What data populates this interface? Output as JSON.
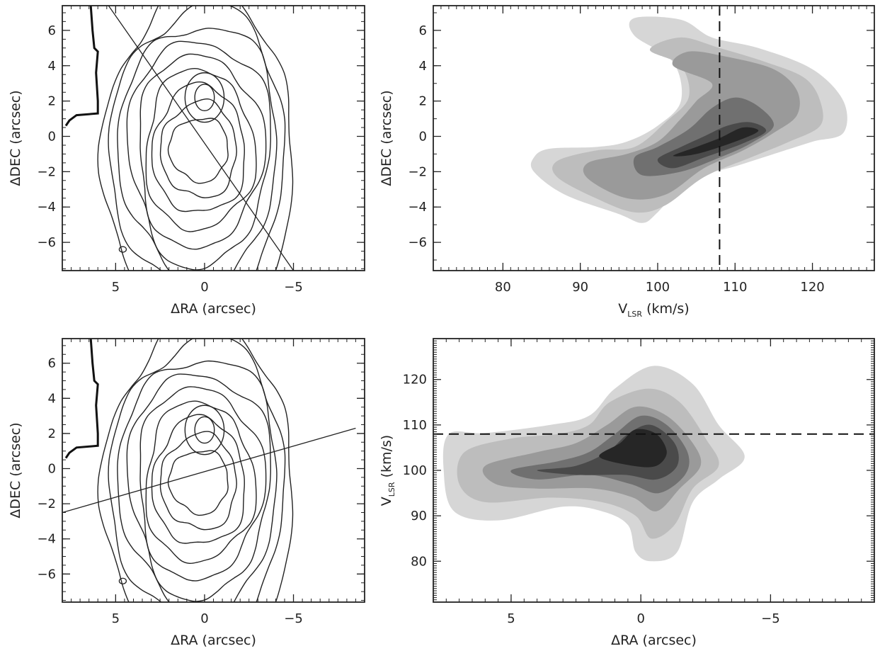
{
  "figure": {
    "panels": [
      "top-left",
      "top-right",
      "bottom-left",
      "bottom-right"
    ]
  },
  "chart_data": [
    {
      "id": "top-left",
      "type": "contour",
      "xlabel": "ΔRA (arcsec)",
      "ylabel": "ΔDEC (arcsec)",
      "xlim": [
        8,
        -9
      ],
      "ylim": [
        -7.6,
        7.4
      ],
      "xticks": [
        {
          "v": 5,
          "label": "5"
        },
        {
          "v": 0,
          "label": "0"
        },
        {
          "v": -5,
          "label": "−5"
        }
      ],
      "yticks": [
        {
          "v": 6,
          "label": "6"
        },
        {
          "v": 4,
          "label": "4"
        },
        {
          "v": 2,
          "label": "2"
        },
        {
          "v": 0,
          "label": "0"
        },
        {
          "v": -2,
          "label": "−2"
        },
        {
          "v": -4,
          "label": "−4"
        },
        {
          "v": -6,
          "label": "−6"
        }
      ],
      "contour_levels": 9,
      "center": [
        0.3,
        -0.7
      ],
      "peak": [
        0,
        2.2
      ],
      "cut_line": [
        [
          5.4,
          7.4
        ],
        [
          -5.0,
          -7.6
        ]
      ]
    },
    {
      "id": "top-right",
      "type": "heatmap",
      "xlabel": "V",
      "xlabel_sub": "LSR",
      "xlabel_unit": " (km/s)",
      "ylabel": "ΔDEC (arcsec)",
      "xlim": [
        71,
        128
      ],
      "ylim": [
        -7.6,
        7.4
      ],
      "xticks": [
        {
          "v": 80,
          "label": "80"
        },
        {
          "v": 90,
          "label": "90"
        },
        {
          "v": 100,
          "label": "100"
        },
        {
          "v": 110,
          "label": "110"
        },
        {
          "v": 120,
          "label": "120"
        }
      ],
      "yticks": [
        {
          "v": 6,
          "label": "6"
        },
        {
          "v": 4,
          "label": "4"
        },
        {
          "v": 2,
          "label": "2"
        },
        {
          "v": 0,
          "label": "0"
        },
        {
          "v": -2,
          "label": "−2"
        },
        {
          "v": -4,
          "label": "−4"
        },
        {
          "v": -6,
          "label": "−6"
        }
      ],
      "dashed_vline": 108,
      "shells": [
        {
          "gray": "#d6d6d6",
          "pts": [
            [
              84,
              -1.2
            ],
            [
              86,
              -0.7
            ],
            [
              92,
              -0.6
            ],
            [
              96,
              -0.3
            ],
            [
              100,
              0.6
            ],
            [
              103,
              2.0
            ],
            [
              102,
              4.2
            ],
            [
              97,
              5.7
            ],
            [
              97,
              6.7
            ],
            [
              103,
              6.6
            ],
            [
              107,
              5.6
            ],
            [
              113,
              5.0
            ],
            [
              120,
              3.8
            ],
            [
              124,
              2.0
            ],
            [
              124,
              0.2
            ],
            [
              120,
              -0.3
            ],
            [
              115,
              -1.0
            ],
            [
              110,
              -1.7
            ],
            [
              104,
              -2.5
            ],
            [
              100,
              -4.3
            ],
            [
              98,
              -4.9
            ],
            [
              95,
              -4.4
            ],
            [
              88,
              -3.3
            ],
            [
              84,
              -2.0
            ]
          ]
        },
        {
          "gray": "#bdbdbd",
          "pts": [
            [
              87,
              -1.4
            ],
            [
              92,
              -0.8
            ],
            [
              97,
              -0.6
            ],
            [
              101,
              0.8
            ],
            [
              104,
              2.2
            ],
            [
              103,
              4.0
            ],
            [
              99,
              4.9
            ],
            [
              103,
              5.6
            ],
            [
              108,
              5.0
            ],
            [
              114,
              4.2
            ],
            [
              119,
              3.3
            ],
            [
              121,
              2.0
            ],
            [
              121,
              0.6
            ],
            [
              117,
              -0.3
            ],
            [
              112,
              -1.2
            ],
            [
              106,
              -2.3
            ],
            [
              101,
              -3.9
            ],
            [
              97,
              -4.3
            ],
            [
              92,
              -3.5
            ],
            [
              87,
              -2.3
            ]
          ]
        },
        {
          "gray": "#9a9a9a",
          "pts": [
            [
              91,
              -1.5
            ],
            [
              96,
              -1.0
            ],
            [
              100,
              -0.3
            ],
            [
              103,
              1.0
            ],
            [
              105,
              2.0
            ],
            [
              107,
              3.0
            ],
            [
              102,
              4.0
            ],
            [
              104,
              4.8
            ],
            [
              109,
              4.5
            ],
            [
              115,
              3.8
            ],
            [
              118,
              2.6
            ],
            [
              118,
              1.2
            ],
            [
              115,
              0.2
            ],
            [
              111,
              -0.8
            ],
            [
              106,
              -1.8
            ],
            [
              101,
              -3.3
            ],
            [
              96,
              -3.5
            ],
            [
              91,
              -2.4
            ]
          ]
        },
        {
          "gray": "#707070",
          "pts": [
            [
              97,
              -1.2
            ],
            [
              100,
              -0.6
            ],
            [
              104,
              0.4
            ],
            [
              107,
              1.6
            ],
            [
              110,
              2.2
            ],
            [
              113,
              1.7
            ],
            [
              115,
              0.6
            ],
            [
              112,
              -0.4
            ],
            [
              108,
              -1.2
            ],
            [
              103,
              -2.0
            ],
            [
              98,
              -2.2
            ]
          ]
        },
        {
          "gray": "#4a4a4a",
          "pts": [
            [
              100,
              -1.3
            ],
            [
              103,
              -0.6
            ],
            [
              106,
              0.0
            ],
            [
              109,
              0.6
            ],
            [
              112,
              0.8
            ],
            [
              114,
              0.3
            ],
            [
              111,
              -0.4
            ],
            [
              106,
              -1.2
            ],
            [
              102,
              -1.8
            ]
          ]
        },
        {
          "gray": "#262626",
          "pts": [
            [
              102,
              -1.1
            ],
            [
              105,
              -0.6
            ],
            [
              108,
              -0.1
            ],
            [
              111,
              0.5
            ],
            [
              113,
              0.3
            ],
            [
              110,
              -0.3
            ],
            [
              105,
              -1.0
            ]
          ]
        }
      ]
    },
    {
      "id": "bottom-left",
      "type": "contour",
      "xlabel": "ΔRA (arcsec)",
      "ylabel": "ΔDEC (arcsec)",
      "xlim": [
        8,
        -9
      ],
      "ylim": [
        -7.6,
        7.4
      ],
      "xticks": [
        {
          "v": 5,
          "label": "5"
        },
        {
          "v": 0,
          "label": "0"
        },
        {
          "v": -5,
          "label": "−5"
        }
      ],
      "yticks": [
        {
          "v": 6,
          "label": "6"
        },
        {
          "v": 4,
          "label": "4"
        },
        {
          "v": 2,
          "label": "2"
        },
        {
          "v": 0,
          "label": "0"
        },
        {
          "v": -2,
          "label": "−2"
        },
        {
          "v": -4,
          "label": "−4"
        },
        {
          "v": -6,
          "label": "−6"
        }
      ],
      "contour_levels": 9,
      "center": [
        0.3,
        -0.7
      ],
      "peak": [
        0,
        2.2
      ],
      "cut_line": [
        [
          8,
          -2.5
        ],
        [
          -8.5,
          2.3
        ]
      ]
    },
    {
      "id": "bottom-right",
      "type": "heatmap",
      "xlabel": "ΔRA (arcsec)",
      "ylabel": "V",
      "ylabel_sub": "LSR",
      "ylabel_unit": " (km/s)",
      "xlim": [
        8,
        -9
      ],
      "ylim": [
        71,
        129
      ],
      "xticks": [
        {
          "v": 5,
          "label": "5"
        },
        {
          "v": 0,
          "label": "0"
        },
        {
          "v": -5,
          "label": "−5"
        }
      ],
      "yticks": [
        {
          "v": 120,
          "label": "120"
        },
        {
          "v": 110,
          "label": "110"
        },
        {
          "v": 100,
          "label": "100"
        },
        {
          "v": 90,
          "label": "90"
        },
        {
          "v": 80,
          "label": "80"
        }
      ],
      "dashed_hline": 108,
      "shells": [
        {
          "gray": "#d6d6d6",
          "pts": [
            [
              7.4,
              108
            ],
            [
              6,
              108.2
            ],
            [
              3.5,
              110
            ],
            [
              2,
              112
            ],
            [
              1,
              118
            ],
            [
              -0.5,
              123
            ],
            [
              -2,
              119
            ],
            [
              -3,
              110
            ],
            [
              -4,
              103
            ],
            [
              -3,
              98
            ],
            [
              -2,
              93
            ],
            [
              -1.4,
              82
            ],
            [
              -0.4,
              80
            ],
            [
              0.2,
              82
            ],
            [
              0.5,
              88
            ],
            [
              1.5,
              91
            ],
            [
              3,
              92
            ],
            [
              5.5,
              89
            ],
            [
              7.2,
              91
            ],
            [
              7.6,
              100
            ]
          ]
        },
        {
          "gray": "#bdbdbd",
          "pts": [
            [
              6.8,
              104
            ],
            [
              5,
              107
            ],
            [
              3.2,
              108
            ],
            [
              2,
              110
            ],
            [
              1.2,
              115
            ],
            [
              -0.3,
              118
            ],
            [
              -1.5,
              115
            ],
            [
              -2.5,
              107
            ],
            [
              -3,
              101
            ],
            [
              -2,
              96
            ],
            [
              -1.3,
              88
            ],
            [
              -0.4,
              85
            ],
            [
              0.2,
              90
            ],
            [
              1.5,
              93
            ],
            [
              3.5,
              94
            ],
            [
              6,
              93
            ],
            [
              7,
              97
            ]
          ]
        },
        {
          "gray": "#9a9a9a",
          "pts": [
            [
              6,
              101
            ],
            [
              4,
              104
            ],
            [
              2.5,
              106
            ],
            [
              1.3,
              110
            ],
            [
              0.2,
              114
            ],
            [
              -1,
              112
            ],
            [
              -2,
              106
            ],
            [
              -2.3,
              101
            ],
            [
              -1.5,
              96
            ],
            [
              -0.6,
              91
            ],
            [
              0.3,
              94
            ],
            [
              1.8,
              96
            ],
            [
              4,
              96
            ],
            [
              5.6,
              97
            ]
          ]
        },
        {
          "gray": "#707070",
          "pts": [
            [
              5,
              100
            ],
            [
              3.2,
              102
            ],
            [
              2,
              104
            ],
            [
              1,
              108
            ],
            [
              0,
              112
            ],
            [
              -1,
              110
            ],
            [
              -1.8,
              104
            ],
            [
              -1.7,
              99
            ],
            [
              -0.7,
              95
            ],
            [
              0.4,
              97
            ],
            [
              2,
              99
            ],
            [
              4,
              98
            ]
          ]
        },
        {
          "gray": "#4a4a4a",
          "pts": [
            [
              4,
              100
            ],
            [
              2.5,
              101
            ],
            [
              1.3,
              104
            ],
            [
              0.5,
              108
            ],
            [
              -0.4,
              110
            ],
            [
              -1.3,
              106
            ],
            [
              -1.4,
              101
            ],
            [
              -0.6,
              98
            ],
            [
              0.6,
              99
            ],
            [
              2.5,
              99
            ]
          ]
        },
        {
          "gray": "#262626",
          "pts": [
            [
              1.6,
              103
            ],
            [
              0.8,
              106
            ],
            [
              0.2,
              109
            ],
            [
              -0.6,
              108
            ],
            [
              -1,
              104
            ],
            [
              -0.6,
              101
            ],
            [
              0.3,
              101
            ]
          ]
        }
      ]
    }
  ]
}
